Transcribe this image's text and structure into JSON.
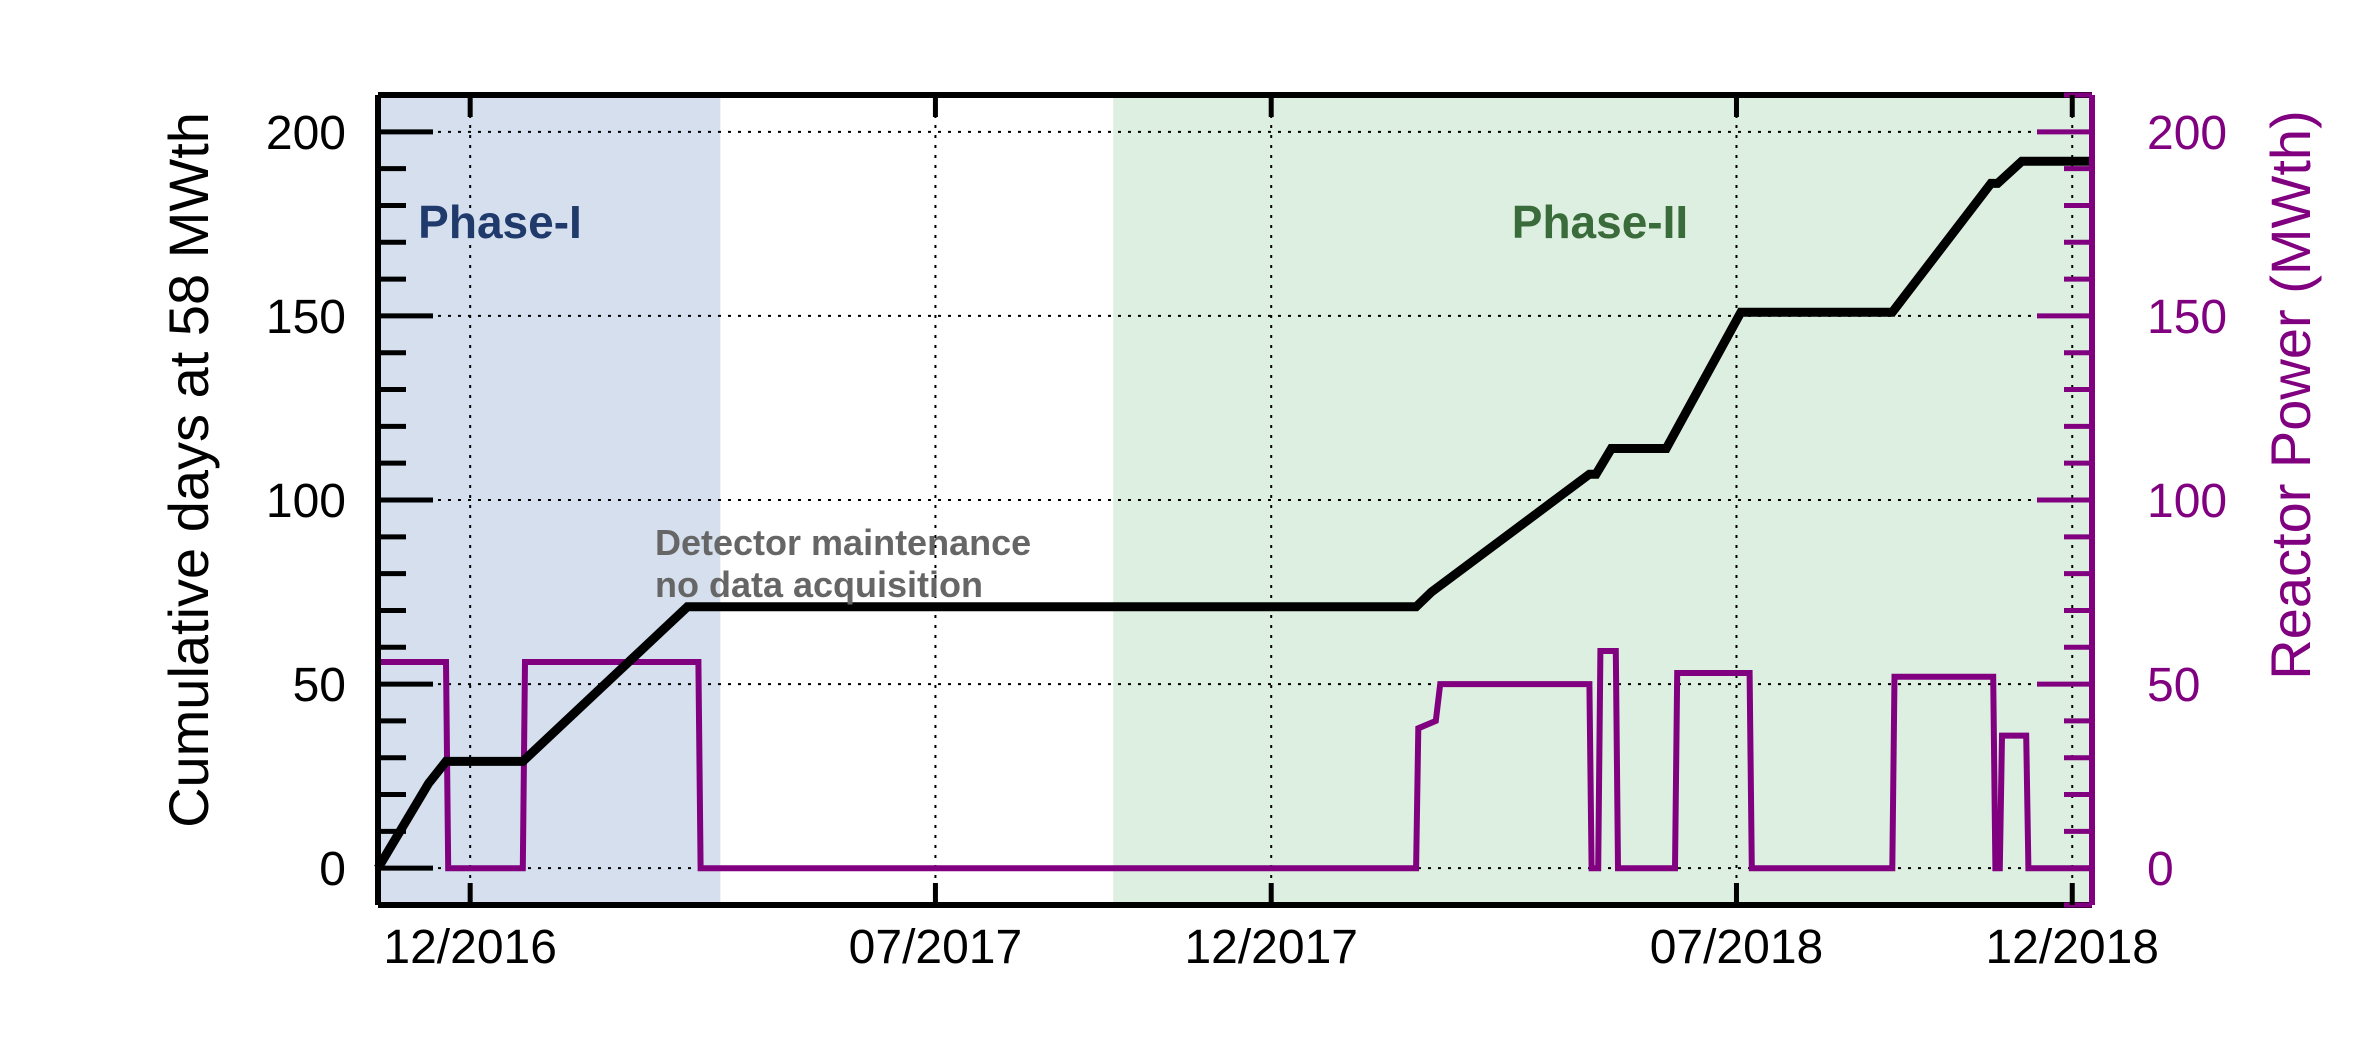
{
  "chart_data": {
    "type": "line",
    "x_axis": {
      "tick_labels": [
        "12/2016",
        "07/2017",
        "12/2017",
        "07/2018",
        "12/2018"
      ],
      "tick_dates": [
        "2016-12-01",
        "2017-07-01",
        "2017-12-01",
        "2018-07-01",
        "2018-12-01"
      ],
      "range": [
        "2016-10-20",
        "2018-12-10"
      ]
    },
    "y_left": {
      "label": "Cumulative days at 58 MWth",
      "ticks": [
        0,
        50,
        100,
        150,
        200
      ],
      "tick_labels": [
        "0",
        "50",
        "100",
        "150",
        "200"
      ],
      "range": [
        -10,
        210
      ]
    },
    "y_right": {
      "label": "Reactor Power (MWth)",
      "ticks": [
        0,
        50,
        100,
        150,
        200
      ],
      "tick_labels": [
        "0",
        "50",
        "100",
        "150",
        "200"
      ],
      "range": [
        -10,
        210
      ]
    },
    "grid": true,
    "regions": [
      {
        "label": "Phase-I",
        "start": "2016-10-20",
        "end": "2017-03-25",
        "color": "#d5dfee",
        "label_color": "#1f3a6b"
      },
      {
        "label": "Phase-II",
        "start": "2017-09-20",
        "end": "2018-12-10",
        "color": "#ddefe1",
        "label_color": "#3a6b3a"
      }
    ],
    "annotations": [
      "Detector maintenance",
      "no data acquisition"
    ],
    "series": [
      {
        "axis": "left",
        "color": "#000000",
        "points": [
          [
            "2016-10-20",
            0
          ],
          [
            "2016-11-12",
            23
          ],
          [
            "2016-11-20",
            29
          ],
          [
            "2016-12-25",
            29
          ],
          [
            "2017-03-10",
            71
          ],
          [
            "2017-09-20",
            71
          ],
          [
            "2018-02-05",
            71
          ],
          [
            "2018-02-12",
            75
          ],
          [
            "2018-04-25",
            107
          ],
          [
            "2018-04-28",
            107
          ],
          [
            "2018-05-05",
            114
          ],
          [
            "2018-05-30",
            114
          ],
          [
            "2018-07-03",
            151
          ],
          [
            "2018-09-10",
            151
          ],
          [
            "2018-10-25",
            186
          ],
          [
            "2018-10-28",
            186
          ],
          [
            "2018-11-08",
            192
          ],
          [
            "2018-12-10",
            192
          ]
        ]
      },
      {
        "axis": "right",
        "color": "#800080",
        "points": [
          [
            "2016-10-20",
            56
          ],
          [
            "2016-11-20",
            56
          ],
          [
            "2016-11-21",
            0
          ],
          [
            "2016-12-25",
            0
          ],
          [
            "2016-12-26",
            56
          ],
          [
            "2017-03-15",
            56
          ],
          [
            "2017-03-16",
            0
          ],
          [
            "2018-02-05",
            0
          ],
          [
            "2018-02-06",
            38
          ],
          [
            "2018-02-14",
            40
          ],
          [
            "2018-02-16",
            50
          ],
          [
            "2018-04-25",
            50
          ],
          [
            "2018-04-26",
            0
          ],
          [
            "2018-04-29",
            0
          ],
          [
            "2018-04-30",
            59
          ],
          [
            "2018-05-07",
            59
          ],
          [
            "2018-05-08",
            0
          ],
          [
            "2018-06-03",
            0
          ],
          [
            "2018-06-04",
            53
          ],
          [
            "2018-07-07",
            53
          ],
          [
            "2018-07-08",
            0
          ],
          [
            "2018-09-10",
            0
          ],
          [
            "2018-09-11",
            52
          ],
          [
            "2018-10-26",
            52
          ],
          [
            "2018-10-27",
            0
          ],
          [
            "2018-10-29",
            0
          ],
          [
            "2018-10-30",
            36
          ],
          [
            "2018-11-10",
            36
          ],
          [
            "2018-11-11",
            0
          ],
          [
            "2018-12-10",
            0
          ]
        ]
      }
    ]
  }
}
